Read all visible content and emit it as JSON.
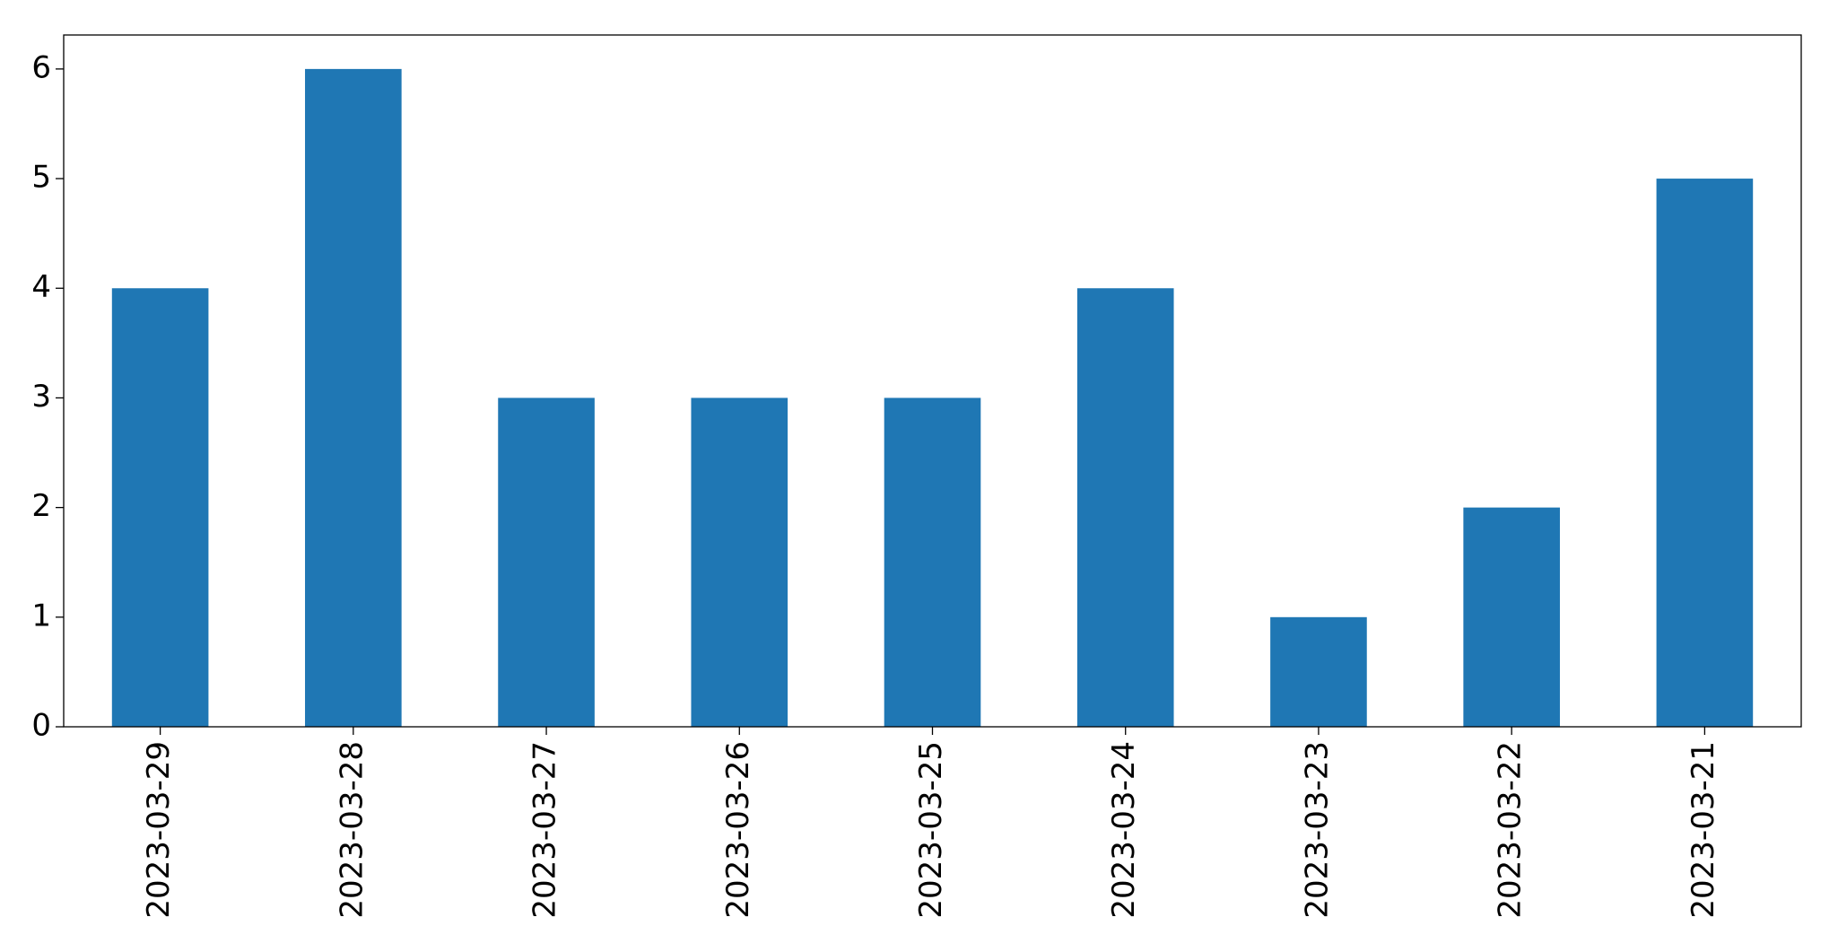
{
  "chart_data": {
    "type": "bar",
    "categories": [
      "2023-03-29",
      "2023-03-28",
      "2023-03-27",
      "2023-03-26",
      "2023-03-25",
      "2023-03-24",
      "2023-03-23",
      "2023-03-22",
      "2023-03-21"
    ],
    "values": [
      4,
      6,
      3,
      3,
      3,
      4,
      1,
      2,
      5
    ],
    "color": "#1f77b4",
    "ylim": [
      0,
      6.31
    ],
    "yticks": [
      0,
      1,
      2,
      3,
      4,
      5,
      6
    ],
    "grid": false
  }
}
